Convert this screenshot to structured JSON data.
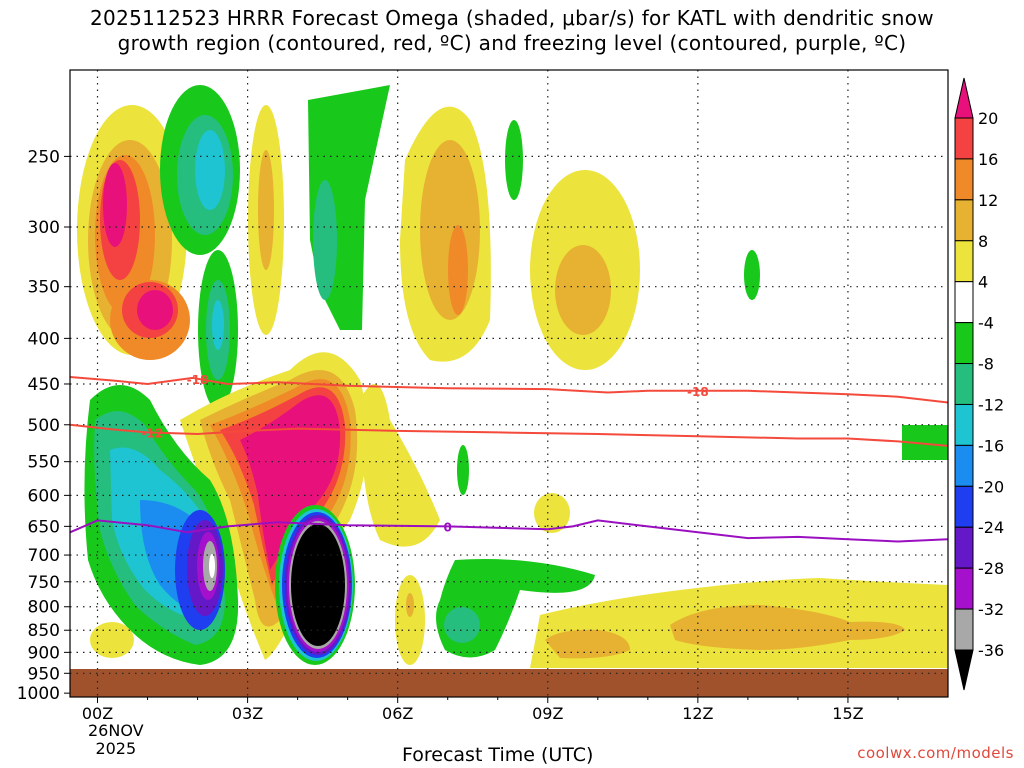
{
  "title": {
    "line1": "2025112523 HRRR Forecast Omega (shaded, μbar/s) for KATL with dendritic snow",
    "line2": "growth region (contoured, red, ºC) and freezing level (contoured, purple, ºC)"
  },
  "credit": "coolwx.com/models",
  "chart_data": {
    "type": "heatmap",
    "xlabel": "Forecast Time (UTC)",
    "x_ticks": [
      "00Z",
      "03Z",
      "06Z",
      "09Z",
      "12Z",
      "15Z"
    ],
    "x_tick_hours": [
      0,
      3,
      6,
      9,
      12,
      15
    ],
    "x_date_line1": "26NOV",
    "x_date_line2": "2025",
    "xlim_hours": [
      -0.55,
      17
    ],
    "y_ticks": [
      250,
      300,
      350,
      400,
      450,
      500,
      550,
      600,
      650,
      700,
      750,
      800,
      850,
      900,
      950,
      1000
    ],
    "ylim_mb": [
      200,
      1000
    ],
    "y_scale": "log-pressure",
    "grid": "dotted",
    "colorbar": {
      "labels": [
        "20",
        "16",
        "12",
        "8",
        "4",
        "-4",
        "-8",
        "-12",
        "-16",
        "-20",
        "-24",
        "-28",
        "-32",
        "-36"
      ],
      "colors": [
        "#e8107a",
        "#f44242",
        "#f08a28",
        "#e7b231",
        "#ece33c",
        "#ffffff",
        "#18c81a",
        "#25be7f",
        "#1ec4d2",
        "#1b8df0",
        "#1f3ef0",
        "#6418c8",
        "#a410cc",
        "#a8a8a8",
        "#000000"
      ]
    },
    "contours": [
      {
        "label": "-18",
        "color": "#f44a3c",
        "points": [
          [
            -0.55,
            442
          ],
          [
            0.3,
            446
          ],
          [
            1,
            450
          ],
          [
            1.9,
            443
          ],
          [
            2.6,
            450
          ],
          [
            3.6,
            448
          ],
          [
            5,
            452
          ],
          [
            7,
            455
          ],
          [
            9,
            456
          ],
          [
            10.2,
            460
          ],
          [
            11,
            458
          ],
          [
            12,
            458
          ],
          [
            13,
            458
          ],
          [
            14,
            460
          ],
          [
            15,
            462
          ],
          [
            16,
            465
          ],
          [
            17,
            472
          ]
        ]
      },
      {
        "label": "-12",
        "color": "#f44a3c",
        "points": [
          [
            -0.55,
            500
          ],
          [
            0.3,
            506
          ],
          [
            1,
            510
          ],
          [
            2,
            512
          ],
          [
            3,
            508
          ],
          [
            4,
            505
          ],
          [
            6,
            508
          ],
          [
            8,
            510
          ],
          [
            10,
            512
          ],
          [
            12,
            515
          ],
          [
            14,
            518
          ],
          [
            15,
            518
          ],
          [
            16,
            522
          ],
          [
            17,
            528
          ]
        ]
      },
      {
        "label": "0",
        "color": "#9a10c0",
        "points": [
          [
            -0.55,
            660
          ],
          [
            0,
            640
          ],
          [
            1,
            648
          ],
          [
            1.8,
            660
          ],
          [
            2.6,
            650
          ],
          [
            3.6,
            643
          ],
          [
            5,
            648
          ],
          [
            7,
            650
          ],
          [
            9,
            655
          ],
          [
            9.5,
            650
          ],
          [
            10,
            640
          ],
          [
            11,
            650
          ],
          [
            12,
            660
          ],
          [
            13,
            670
          ],
          [
            14,
            668
          ],
          [
            15,
            672
          ],
          [
            16,
            676
          ],
          [
            17,
            672
          ]
        ]
      }
    ],
    "ground_color": "#a0522d"
  }
}
